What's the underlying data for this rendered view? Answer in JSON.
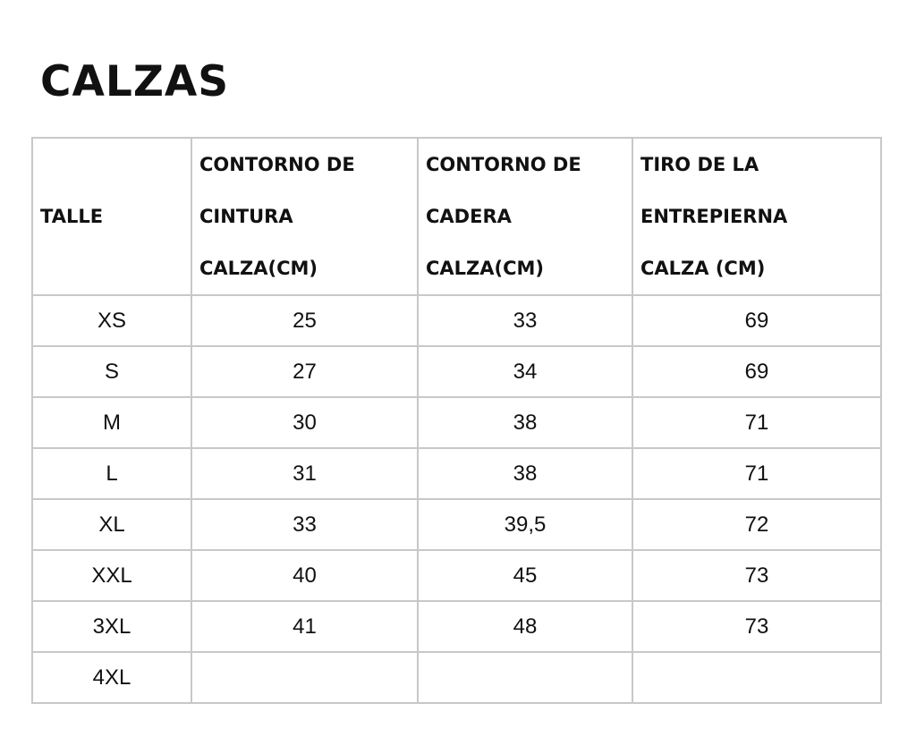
{
  "title": "CALZAS",
  "table": {
    "headers": [
      "TALLE",
      "CONTORNO DE CINTURA CALZA(CM)",
      "CONTORNO DE CADERA CALZA(CM)",
      "TIRO DE LA ENTREPIERNA CALZA (CM)"
    ],
    "header_lines": [
      [
        "TALLE"
      ],
      [
        "CONTORNO DE",
        "CINTURA",
        "CALZA(CM)"
      ],
      [
        "CONTORNO DE",
        "CADERA",
        "CALZA(CM)"
      ],
      [
        "TIRO DE LA",
        "ENTREPIERNA",
        "CALZA (CM)"
      ]
    ],
    "rows": [
      [
        "XS",
        "25",
        "33",
        "69"
      ],
      [
        "S",
        "27",
        "34",
        "69"
      ],
      [
        "M",
        "30",
        "38",
        "71"
      ],
      [
        "L",
        "31",
        "38",
        "71"
      ],
      [
        "XL",
        "33",
        "39,5",
        "72"
      ],
      [
        "XXL",
        "40",
        "45",
        "73"
      ],
      [
        "3XL",
        "41",
        "48",
        "73"
      ],
      [
        "4XL",
        "",
        "",
        ""
      ]
    ]
  }
}
